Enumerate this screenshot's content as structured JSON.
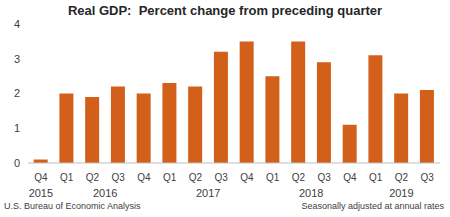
{
  "chart_data": {
    "type": "bar",
    "title": "Real GDP:  Percent change from preceding quarter",
    "categories": [
      "Q4",
      "Q1",
      "Q2",
      "Q3",
      "Q4",
      "Q1",
      "Q2",
      "Q3",
      "Q4",
      "Q1",
      "Q2",
      "Q3",
      "Q4",
      "Q1",
      "Q2",
      "Q3"
    ],
    "category_groups": [
      "2015",
      "2016",
      "2016",
      "2016",
      "2016",
      "2017",
      "2017",
      "2017",
      "2017",
      "2018",
      "2018",
      "2018",
      "2018",
      "2019",
      "2019",
      "2019"
    ],
    "values": [
      0.1,
      2.0,
      1.9,
      2.2,
      2.0,
      2.3,
      2.2,
      3.2,
      3.5,
      2.5,
      3.5,
      2.9,
      1.1,
      3.1,
      2.0,
      2.1
    ],
    "color": "#d2601a",
    "ylim": [
      0,
      4
    ],
    "yticks": [
      0,
      1,
      2,
      3,
      4
    ],
    "grid": false,
    "source": "U.S. Bureau of Economic Analysis",
    "note": "Seasonally adjusted at annual rates"
  }
}
